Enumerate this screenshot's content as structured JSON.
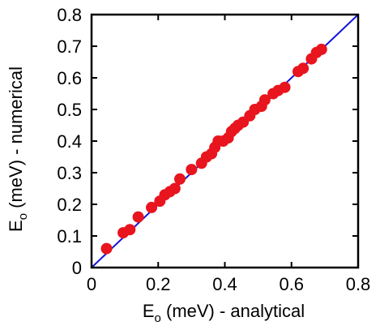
{
  "chart_data": {
    "type": "scatter",
    "xlabel": "E",
    "xlabel_sub": "o",
    "xlabel_rest": " (meV) - analytical",
    "ylabel": "E",
    "ylabel_sub": "o",
    "ylabel_rest": " (meV) - numerical",
    "xlim": [
      0,
      0.8
    ],
    "ylim": [
      0,
      0.8
    ],
    "x_ticks": [
      "0",
      "0.2",
      "0.4",
      "0.6",
      "0.8"
    ],
    "x_tick_values": [
      0,
      0.2,
      0.4,
      0.6,
      0.8
    ],
    "y_ticks": [
      "0",
      "0.1",
      "0.2",
      "0.3",
      "0.4",
      "0.5",
      "0.6",
      "0.7",
      "0.8"
    ],
    "y_tick_values": [
      0,
      0.1,
      0.2,
      0.3,
      0.4,
      0.5,
      0.6,
      0.7,
      0.8
    ],
    "grid": false,
    "legend": "none",
    "marker_color": "#e8141e",
    "line_color": "#1414d8",
    "reference_line": {
      "x": [
        0,
        0.8
      ],
      "y": [
        0,
        0.8
      ]
    },
    "series": [
      {
        "x": [
          0.045,
          0.095,
          0.115,
          0.14,
          0.18,
          0.205,
          0.22,
          0.235,
          0.25,
          0.265,
          0.3,
          0.33,
          0.345,
          0.36,
          0.37,
          0.38,
          0.395,
          0.41,
          0.42,
          0.43,
          0.44,
          0.455,
          0.475,
          0.49,
          0.51,
          0.52,
          0.545,
          0.56,
          0.58,
          0.62,
          0.635,
          0.66,
          0.675,
          0.69
        ],
        "y": [
          0.06,
          0.11,
          0.12,
          0.16,
          0.19,
          0.21,
          0.23,
          0.24,
          0.25,
          0.28,
          0.31,
          0.33,
          0.35,
          0.36,
          0.38,
          0.4,
          0.4,
          0.41,
          0.43,
          0.44,
          0.45,
          0.46,
          0.48,
          0.5,
          0.51,
          0.53,
          0.55,
          0.56,
          0.57,
          0.62,
          0.63,
          0.66,
          0.68,
          0.69
        ]
      }
    ]
  }
}
